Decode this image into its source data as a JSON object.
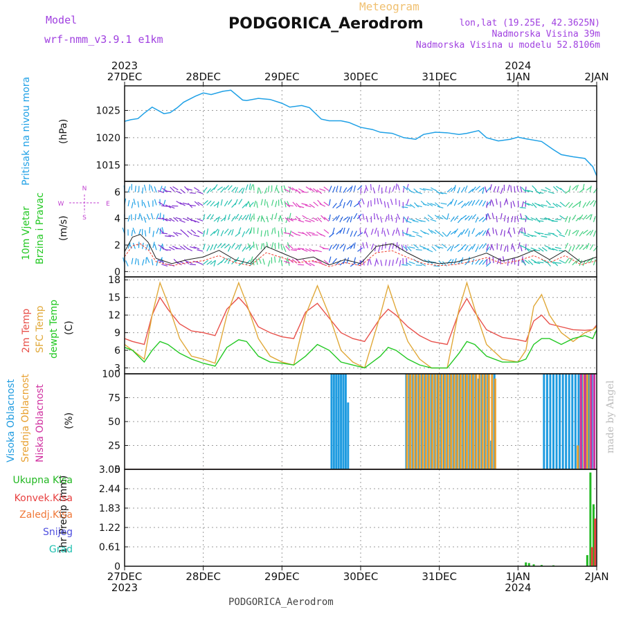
{
  "header": {
    "model_label": "Model",
    "model_name": "wrf-nmm_v3.9.1  e1km",
    "station_title": "PODGORICA_Aerodrom",
    "meteogram_label": "Meteogram",
    "lonlat": "lon,lat (19.25E, 42.3625N)",
    "elevation": "Nadmorska Visina 39m",
    "model_elevation": "Nadmorska Visina u modelu 52.8106m"
  },
  "footer": {
    "station": "PODGORICA_Aerodrom",
    "credit": "made by Angel"
  },
  "colors": {
    "pressure": "#1ea0e6",
    "temp2m": "#e8504a",
    "sfc_temp": "#e0a838",
    "dewpt": "#22c822",
    "high_cloud": "#1e9be0",
    "mid_cloud": "#e8a030",
    "low_cloud": "#d030a0",
    "total_precip": "#22b822",
    "conv_precip": "#e84040",
    "freezing": "#f07838",
    "snow": "#5050e0",
    "hail": "#20c0b0"
  },
  "time_axis": {
    "ticks": [
      "27DEC",
      "28DEC",
      "29DEC",
      "30DEC",
      "31DEC",
      "1JAN",
      "2JAN"
    ],
    "year_labels": [
      {
        "tick": 0,
        "year": "2023"
      },
      {
        "tick": 5,
        "year": "2024"
      }
    ]
  },
  "panel_labels": {
    "pressure": [
      "Pritisak na nivou mora",
      "(hPa)"
    ],
    "wind": [
      "10m Vjetar",
      "Brzina i Pravac",
      "(m/s)"
    ],
    "compass": {
      "n": "N",
      "s": "S",
      "w": "W",
      "e": "E"
    },
    "temp": [
      "2m Temp",
      "SFC Temp",
      "dewpt Temp",
      "(C)"
    ],
    "cloud": [
      "Visoka Oblacnost",
      "Srednja Oblacnost",
      "Niska Oblacnost",
      "(%)"
    ],
    "precip_axis": "1hr Precip (mm)",
    "precip_legend": [
      "Ukupna Kisa",
      "Konvek.Kisa",
      "Zaledj.Kisa",
      "Snijeg",
      "Grad"
    ]
  },
  "chart_data": [
    {
      "type": "line",
      "name": "pressure",
      "ylabel": "(hPa)",
      "ylim": [
        1012,
        1029.5
      ],
      "yticks": [
        1015,
        1020,
        1025
      ],
      "x_days": [
        0,
        0.08,
        0.17,
        0.25,
        0.35,
        0.5,
        0.58,
        0.67,
        0.75,
        0.9,
        1.0,
        1.1,
        1.25,
        1.35,
        1.5,
        1.55,
        1.7,
        1.85,
        2.0,
        2.1,
        2.25,
        2.35,
        2.5,
        2.6,
        2.75,
        2.85,
        3.0,
        3.15,
        3.25,
        3.4,
        3.55,
        3.7,
        3.8,
        3.95,
        4.1,
        4.25,
        4.35,
        4.5,
        4.6,
        4.75,
        4.9,
        5.0,
        5.1,
        5.3,
        5.45,
        5.55,
        5.7,
        5.85,
        5.95,
        6.0
      ],
      "values": [
        1023.0,
        1023.3,
        1023.5,
        1024.5,
        1025.6,
        1024.4,
        1024.6,
        1025.5,
        1026.5,
        1027.6,
        1028.2,
        1027.9,
        1028.5,
        1028.7,
        1026.9,
        1026.8,
        1027.2,
        1027.0,
        1026.3,
        1025.6,
        1025.9,
        1025.5,
        1023.4,
        1023.1,
        1023.1,
        1022.8,
        1021.9,
        1021.5,
        1021.0,
        1020.8,
        1020.0,
        1019.7,
        1020.6,
        1021.0,
        1020.9,
        1020.6,
        1020.8,
        1021.3,
        1020.0,
        1019.4,
        1019.7,
        1020.1,
        1019.8,
        1019.3,
        1017.8,
        1016.9,
        1016.5,
        1016.2,
        1014.7,
        1013.0
      ]
    },
    {
      "type": "line",
      "name": "wind",
      "ylabel": "(m/s)",
      "ylim": [
        -0.4,
        6.8
      ],
      "yticks": [
        0,
        2,
        4,
        6
      ],
      "x_days": [
        0,
        0.1,
        0.2,
        0.3,
        0.4,
        0.6,
        0.8,
        1.0,
        1.2,
        1.4,
        1.6,
        1.8,
        2.0,
        2.2,
        2.4,
        2.6,
        2.8,
        3.0,
        3.2,
        3.4,
        3.6,
        3.8,
        4.0,
        4.2,
        4.4,
        4.6,
        4.8,
        5.0,
        5.2,
        5.4,
        5.6,
        5.8,
        6.0
      ],
      "values": [
        1.5,
        2.6,
        2.8,
        2.2,
        1.0,
        0.6,
        0.9,
        1.1,
        1.6,
        0.9,
        0.6,
        1.9,
        1.4,
        0.9,
        1.1,
        0.5,
        0.9,
        0.6,
        1.9,
        2.1,
        1.4,
        0.8,
        0.6,
        0.7,
        1.0,
        1.4,
        0.8,
        1.1,
        1.6,
        0.9,
        1.6,
        0.7,
        1.1
      ]
    },
    {
      "type": "line",
      "name": "temperature",
      "ylabel": "(C)",
      "ylim": [
        2.0,
        18.5
      ],
      "yticks": [
        3,
        6,
        9,
        12,
        15,
        18
      ],
      "series": [
        {
          "name": "2m Temp",
          "x_days": [
            0,
            0.1,
            0.25,
            0.35,
            0.45,
            0.55,
            0.7,
            0.85,
            1.0,
            1.15,
            1.3,
            1.45,
            1.55,
            1.7,
            1.85,
            2.0,
            2.15,
            2.3,
            2.45,
            2.6,
            2.75,
            2.9,
            3.05,
            3.25,
            3.35,
            3.45,
            3.6,
            3.75,
            3.9,
            4.1,
            4.25,
            4.35,
            4.45,
            4.6,
            4.8,
            5.0,
            5.1,
            5.2,
            5.3,
            5.4,
            5.55,
            5.7,
            5.85,
            5.95,
            6.0
          ],
          "values": [
            8.0,
            7.5,
            7.0,
            12.0,
            15.0,
            13.0,
            10.5,
            9.3,
            9.0,
            8.5,
            13.0,
            15.0,
            13.5,
            10.0,
            9.0,
            8.3,
            8.0,
            12.5,
            14.0,
            11.5,
            9.0,
            8.0,
            7.5,
            11.5,
            13.0,
            12.0,
            10.0,
            8.5,
            7.5,
            7.0,
            12.5,
            14.8,
            12.5,
            9.5,
            8.2,
            7.8,
            7.5,
            11.0,
            12.0,
            10.5,
            10.0,
            9.5,
            9.4,
            9.5,
            10.3
          ]
        },
        {
          "name": "SFC Temp",
          "x_days": [
            0,
            0.1,
            0.25,
            0.35,
            0.45,
            0.55,
            0.7,
            0.85,
            1.0,
            1.15,
            1.3,
            1.45,
            1.55,
            1.7,
            1.85,
            2.0,
            2.15,
            2.3,
            2.45,
            2.6,
            2.75,
            2.9,
            3.05,
            3.25,
            3.35,
            3.45,
            3.6,
            3.75,
            3.9,
            4.1,
            4.25,
            4.35,
            4.45,
            4.6,
            4.8,
            5.0,
            5.1,
            5.2,
            5.3,
            5.4,
            5.55,
            5.7,
            5.85,
            5.95,
            6.0
          ],
          "values": [
            7.0,
            6.0,
            4.5,
            12.0,
            17.5,
            14.0,
            8.0,
            5.0,
            4.5,
            3.8,
            12.0,
            17.5,
            14.0,
            8.0,
            5.0,
            4.0,
            3.5,
            12.0,
            17.0,
            12.0,
            6.0,
            4.0,
            3.0,
            12.0,
            17.0,
            13.0,
            7.5,
            4.5,
            3.0,
            3.0,
            13.0,
            17.5,
            13.0,
            7.0,
            4.5,
            4.0,
            6.0,
            13.5,
            15.5,
            12.0,
            9.0,
            7.5,
            9.0,
            9.5,
            10.0
          ]
        },
        {
          "name": "dewpt Temp",
          "x_days": [
            0,
            0.1,
            0.25,
            0.35,
            0.45,
            0.55,
            0.7,
            0.85,
            1.0,
            1.15,
            1.3,
            1.45,
            1.55,
            1.7,
            1.85,
            2.0,
            2.15,
            2.3,
            2.45,
            2.6,
            2.75,
            2.9,
            3.05,
            3.25,
            3.35,
            3.45,
            3.6,
            3.75,
            3.9,
            4.1,
            4.25,
            4.35,
            4.45,
            4.6,
            4.8,
            5.0,
            5.1,
            5.2,
            5.3,
            5.4,
            5.55,
            5.7,
            5.85,
            5.95,
            6.0
          ],
          "values": [
            6.5,
            6.0,
            4.0,
            6.0,
            7.5,
            7.0,
            5.5,
            4.5,
            3.8,
            3.3,
            6.5,
            7.8,
            7.5,
            5.0,
            4.0,
            3.8,
            3.5,
            5.0,
            7.0,
            6.0,
            4.0,
            3.5,
            3.0,
            5.0,
            6.5,
            6.0,
            4.5,
            3.5,
            3.0,
            3.0,
            5.5,
            7.5,
            7.0,
            5.0,
            4.0,
            4.0,
            4.5,
            7.0,
            8.0,
            8.0,
            7.0,
            8.0,
            8.5,
            8.0,
            9.5
          ]
        }
      ]
    },
    {
      "type": "bar",
      "name": "cloud",
      "ylabel": "(%)",
      "ylim": [
        0,
        100
      ],
      "yticks": [
        0,
        25,
        50,
        75,
        100
      ],
      "series": [
        {
          "name": "Visoka Oblacnost",
          "x_days": [
            2.63,
            2.66,
            2.69,
            2.72,
            2.75,
            2.78,
            2.81,
            2.84,
            3.58,
            3.62,
            3.66,
            3.7,
            3.74,
            3.78,
            3.82,
            3.86,
            3.9,
            3.94,
            3.98,
            4.02,
            4.06,
            4.1,
            4.14,
            4.18,
            4.22,
            4.26,
            4.3,
            4.34,
            4.38,
            4.42,
            4.46,
            4.5,
            4.54,
            4.58,
            4.62,
            4.66,
            4.7,
            5.33,
            5.37,
            5.41,
            5.45,
            5.49,
            5.53,
            5.57,
            5.61,
            5.65,
            5.69,
            5.73,
            5.77,
            5.81,
            5.86,
            5.9,
            5.94
          ],
          "values": [
            100,
            100,
            100,
            100,
            100,
            100,
            100,
            70,
            100,
            100,
            100,
            100,
            100,
            100,
            100,
            100,
            100,
            100,
            100,
            100,
            100,
            100,
            100,
            100,
            100,
            100,
            100,
            100,
            100,
            100,
            100,
            95,
            100,
            100,
            100,
            30,
            100,
            100,
            100,
            100,
            100,
            100,
            100,
            100,
            100,
            100,
            100,
            100,
            100,
            100,
            100,
            100,
            100
          ]
        },
        {
          "name": "Srednja Oblacnost",
          "x_days": [
            3.59,
            3.63,
            3.67,
            3.71,
            3.75,
            3.79,
            3.83,
            3.87,
            3.91,
            3.95,
            3.99,
            4.03,
            4.07,
            4.11,
            4.15,
            4.19,
            4.23,
            4.27,
            4.31,
            4.35,
            4.39,
            4.43,
            4.47,
            4.51,
            4.55,
            4.59,
            4.63,
            4.67,
            4.71,
            5.76,
            5.8,
            5.84,
            5.88,
            5.92
          ],
          "values": [
            100,
            100,
            100,
            100,
            100,
            100,
            100,
            100,
            100,
            100,
            100,
            100,
            100,
            100,
            100,
            100,
            100,
            100,
            100,
            100,
            100,
            100,
            100,
            100,
            100,
            100,
            100,
            100,
            95,
            25,
            100,
            100,
            100,
            100
          ]
        },
        {
          "name": "Niska Oblacnost",
          "x_days": [
            5.8,
            5.85,
            5.93,
            5.97
          ],
          "values": [
            100,
            100,
            100,
            100
          ]
        }
      ]
    },
    {
      "type": "bar",
      "name": "precip",
      "ylabel": "1hr Precip (mm)",
      "ylim": [
        0,
        3.05
      ],
      "yticks": [
        0,
        0.61,
        1.22,
        1.83,
        2.44,
        3.05
      ],
      "tick_labels": [
        "0",
        "0.61",
        "1.22",
        "1.83",
        "2.44",
        "3.05"
      ],
      "series": [
        {
          "name": "Ukupna Kisa",
          "x_days": [
            5.1,
            5.14,
            5.2,
            5.3,
            5.45,
            5.88,
            5.92,
            5.96
          ],
          "values": [
            0.12,
            0.1,
            0.06,
            0.04,
            0.03,
            0.35,
            2.95,
            1.95
          ]
        },
        {
          "name": "Konvek.Kisa",
          "x_days": [
            5.94,
            5.98
          ],
          "values": [
            0.6,
            1.5
          ]
        },
        {
          "name": "Zaledj.Kisa",
          "x_days": [],
          "values": []
        },
        {
          "name": "Snijeg",
          "x_days": [],
          "values": []
        },
        {
          "name": "Grad",
          "x_days": [],
          "values": []
        }
      ]
    }
  ]
}
